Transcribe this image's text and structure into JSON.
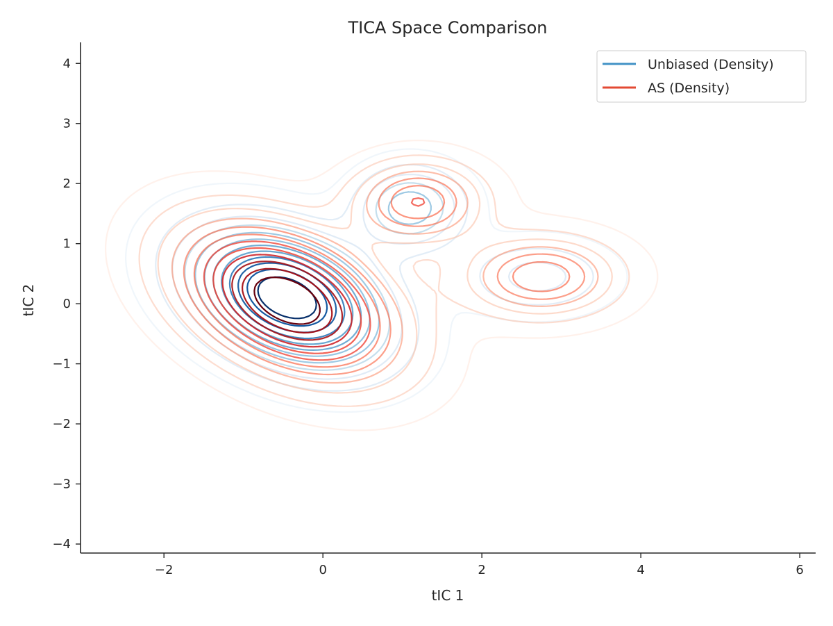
{
  "chart_data": {
    "type": "contour",
    "title": "TICA Space Comparison",
    "xlabel": "tIC 1",
    "ylabel": "tIC 2",
    "xlim": [
      -3.05,
      6.2
    ],
    "ylim": [
      -4.15,
      4.35
    ],
    "x_ticks": [
      -2,
      0,
      2,
      4,
      6
    ],
    "y_ticks": [
      -4,
      -3,
      -2,
      -1,
      0,
      1,
      2,
      3,
      4
    ],
    "x_tick_labels": [
      "−2",
      "0",
      "2",
      "4",
      "6"
    ],
    "y_tick_labels": [
      "−4",
      "−3",
      "−2",
      "−1",
      "0",
      "1",
      "2",
      "3",
      "4"
    ],
    "grid": false,
    "legend_position": "top-right",
    "series": [
      {
        "name": "Unbiased (Density)",
        "legend_color": "#4292c6",
        "colormap": [
          "#deebf7",
          "#c6dbef",
          "#9ecae1",
          "#6baed6",
          "#4292c6",
          "#2171b5",
          "#08519c",
          "#08306b"
        ],
        "components": [
          {
            "mean": [
              -0.45,
              0.1
            ],
            "sd": [
              0.8,
              0.75
            ],
            "rho": -0.35,
            "weight": 0.8
          },
          {
            "mean": [
              1.1,
              1.6
            ],
            "sd": [
              0.45,
              0.45
            ],
            "rho": 0.0,
            "weight": 0.12
          },
          {
            "mean": [
              2.7,
              0.45
            ],
            "sd": [
              0.6,
              0.4
            ],
            "rho": 0.0,
            "weight": 0.08
          }
        ],
        "levels": 12
      },
      {
        "name": "AS (Density)",
        "legend_color": "#e34a33",
        "colormap": [
          "#fee0d2",
          "#fcbba1",
          "#fc9272",
          "#fb6a4a",
          "#ef3b2c",
          "#cb181d",
          "#a50f15",
          "#67000d"
        ],
        "components": [
          {
            "mean": [
              -0.45,
              0.05
            ],
            "sd": [
              0.9,
              0.85
            ],
            "rho": -0.4,
            "weight": 0.72
          },
          {
            "mean": [
              1.2,
              1.7
            ],
            "sd": [
              0.55,
              0.45
            ],
            "rho": 0.0,
            "weight": 0.13
          },
          {
            "mean": [
              2.75,
              0.45
            ],
            "sd": [
              0.65,
              0.45
            ],
            "rho": 0.0,
            "weight": 0.15
          }
        ],
        "levels": 12
      }
    ]
  }
}
